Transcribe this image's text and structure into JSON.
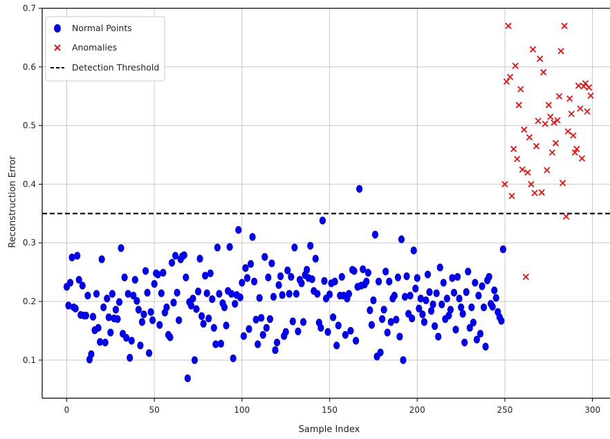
{
  "chart_data": {
    "type": "scatter",
    "xlabel": "Sample Index",
    "ylabel": "Reconstruction Error",
    "xlim": [
      -14,
      310
    ],
    "ylim": [
      0.035,
      0.7
    ],
    "xticks": [
      "0",
      "50",
      "100",
      "150",
      "200",
      "250",
      "300"
    ],
    "yticks": [
      "0.1",
      "0.2",
      "0.3",
      "0.4",
      "0.5",
      "0.6",
      "0.7"
    ],
    "grid": true,
    "legend_position": "top-left",
    "threshold": 0.35,
    "series": [
      {
        "name": "Normal Points",
        "marker": "circle",
        "color": "#0000ee",
        "points": [
          [
            0,
            0.225
          ],
          [
            1,
            0.193
          ],
          [
            2,
            0.232
          ],
          [
            3,
            0.275
          ],
          [
            4,
            0.19
          ],
          [
            5,
            0.188
          ],
          [
            6,
            0.278
          ],
          [
            7,
            0.237
          ],
          [
            8,
            0.177
          ],
          [
            9,
            0.227
          ],
          [
            10,
            0.176
          ],
          [
            11,
            0.176
          ],
          [
            12,
            0.21
          ],
          [
            13,
            0.101
          ],
          [
            14,
            0.11
          ],
          [
            15,
            0.174
          ],
          [
            16,
            0.151
          ],
          [
            17,
            0.213
          ],
          [
            18,
            0.155
          ],
          [
            19,
            0.131
          ],
          [
            20,
            0.272
          ],
          [
            21,
            0.19
          ],
          [
            22,
            0.13
          ],
          [
            23,
            0.205
          ],
          [
            24,
            0.173
          ],
          [
            25,
            0.147
          ],
          [
            26,
            0.213
          ],
          [
            27,
            0.171
          ],
          [
            28,
            0.186
          ],
          [
            29,
            0.17
          ],
          [
            30,
            0.199
          ],
          [
            31,
            0.291
          ],
          [
            32,
            0.145
          ],
          [
            33,
            0.241
          ],
          [
            34,
            0.138
          ],
          [
            35,
            0.213
          ],
          [
            36,
            0.104
          ],
          [
            37,
            0.133
          ],
          [
            38,
            0.21
          ],
          [
            39,
            0.237
          ],
          [
            40,
            0.201
          ],
          [
            41,
            0.186
          ],
          [
            42,
            0.125
          ],
          [
            43,
            0.165
          ],
          [
            44,
            0.178
          ],
          [
            45,
            0.252
          ],
          [
            46,
            0.215
          ],
          [
            47,
            0.112
          ],
          [
            48,
            0.182
          ],
          [
            49,
            0.168
          ],
          [
            50,
            0.23
          ],
          [
            51,
            0.248
          ],
          [
            52,
            0.246
          ],
          [
            53,
            0.16
          ],
          [
            54,
            0.214
          ],
          [
            55,
            0.249
          ],
          [
            56,
            0.181
          ],
          [
            57,
            0.19
          ],
          [
            58,
            0.143
          ],
          [
            59,
            0.139
          ],
          [
            60,
            0.266
          ],
          [
            61,
            0.198
          ],
          [
            62,
            0.278
          ],
          [
            63,
            0.215
          ],
          [
            64,
            0.168
          ],
          [
            65,
            0.272
          ],
          [
            66,
            0.277
          ],
          [
            67,
            0.279
          ],
          [
            68,
            0.241
          ],
          [
            69,
            0.069
          ],
          [
            70,
            0.199
          ],
          [
            71,
            0.193
          ],
          [
            72,
            0.205
          ],
          [
            73,
            0.1
          ],
          [
            74,
            0.187
          ],
          [
            75,
            0.217
          ],
          [
            76,
            0.273
          ],
          [
            77,
            0.175
          ],
          [
            78,
            0.162
          ],
          [
            79,
            0.244
          ],
          [
            80,
            0.214
          ],
          [
            81,
            0.171
          ],
          [
            82,
            0.248
          ],
          [
            83,
            0.204
          ],
          [
            84,
            0.155
          ],
          [
            85,
            0.127
          ],
          [
            86,
            0.292
          ],
          [
            87,
            0.213
          ],
          [
            88,
            0.128
          ],
          [
            89,
            0.197
          ],
          [
            90,
            0.19
          ],
          [
            91,
            0.159
          ],
          [
            92,
            0.218
          ],
          [
            93,
            0.293
          ],
          [
            94,
            0.213
          ],
          [
            95,
            0.103
          ],
          [
            96,
            0.196
          ],
          [
            97,
            0.211
          ],
          [
            98,
            0.322
          ],
          [
            99,
            0.207
          ],
          [
            100,
            0.232
          ],
          [
            101,
            0.141
          ],
          [
            102,
            0.257
          ],
          [
            103,
            0.24
          ],
          [
            104,
            0.153
          ],
          [
            105,
            0.264
          ],
          [
            106,
            0.31
          ],
          [
            107,
            0.234
          ],
          [
            108,
            0.169
          ],
          [
            109,
            0.127
          ],
          [
            110,
            0.206
          ],
          [
            111,
            0.172
          ],
          [
            112,
            0.143
          ],
          [
            113,
            0.276
          ],
          [
            114,
            0.155
          ],
          [
            115,
            0.241
          ],
          [
            116,
            0.17
          ],
          [
            117,
            0.265
          ],
          [
            118,
            0.208
          ],
          [
            119,
            0.117
          ],
          [
            120,
            0.13
          ],
          [
            121,
            0.228
          ],
          [
            122,
            0.243
          ],
          [
            123,
            0.211
          ],
          [
            124,
            0.141
          ],
          [
            125,
            0.148
          ],
          [
            126,
            0.253
          ],
          [
            127,
            0.213
          ],
          [
            128,
            0.242
          ],
          [
            129,
            0.166
          ],
          [
            130,
            0.292
          ],
          [
            131,
            0.213
          ],
          [
            132,
            0.149
          ],
          [
            133,
            0.237
          ],
          [
            134,
            0.231
          ],
          [
            135,
            0.165
          ],
          [
            136,
            0.245
          ],
          [
            137,
            0.254
          ],
          [
            138,
            0.24
          ],
          [
            139,
            0.295
          ],
          [
            140,
            0.238
          ],
          [
            141,
            0.218
          ],
          [
            142,
            0.273
          ],
          [
            143,
            0.213
          ],
          [
            144,
            0.164
          ],
          [
            145,
            0.155
          ],
          [
            146,
            0.338
          ],
          [
            147,
            0.235
          ],
          [
            148,
            0.205
          ],
          [
            149,
            0.148
          ],
          [
            150,
            0.212
          ],
          [
            151,
            0.231
          ],
          [
            152,
            0.173
          ],
          [
            153,
            0.234
          ],
          [
            154,
            0.125
          ],
          [
            155,
            0.159
          ],
          [
            156,
            0.21
          ],
          [
            157,
            0.242
          ],
          [
            158,
            0.21
          ],
          [
            159,
            0.143
          ],
          [
            160,
            0.205
          ],
          [
            161,
            0.213
          ],
          [
            162,
            0.15
          ],
          [
            163,
            0.254
          ],
          [
            164,
            0.252
          ],
          [
            165,
            0.133
          ],
          [
            166,
            0.225
          ],
          [
            167,
            0.392
          ],
          [
            168,
            0.227
          ],
          [
            169,
            0.255
          ],
          [
            170,
            0.229
          ],
          [
            171,
            0.234
          ],
          [
            172,
            0.249
          ],
          [
            173,
            0.185
          ],
          [
            174,
            0.16
          ],
          [
            175,
            0.202
          ],
          [
            176,
            0.314
          ],
          [
            177,
            0.106
          ],
          [
            178,
            0.234
          ],
          [
            179,
            0.113
          ],
          [
            180,
            0.17
          ],
          [
            181,
            0.186
          ],
          [
            182,
            0.251
          ],
          [
            183,
            0.147
          ],
          [
            184,
            0.234
          ],
          [
            185,
            0.165
          ],
          [
            186,
            0.205
          ],
          [
            187,
            0.21
          ],
          [
            188,
            0.169
          ],
          [
            189,
            0.241
          ],
          [
            190,
            0.14
          ],
          [
            191,
            0.306
          ],
          [
            192,
            0.1
          ],
          [
            193,
            0.208
          ],
          [
            194,
            0.243
          ],
          [
            195,
            0.179
          ],
          [
            196,
            0.21
          ],
          [
            197,
            0.171
          ],
          [
            198,
            0.287
          ],
          [
            199,
            0.222
          ],
          [
            200,
            0.24
          ],
          [
            201,
            0.188
          ],
          [
            202,
            0.205
          ],
          [
            203,
            0.178
          ],
          [
            204,
            0.165
          ],
          [
            205,
            0.202
          ],
          [
            206,
            0.246
          ],
          [
            207,
            0.216
          ],
          [
            208,
            0.184
          ],
          [
            209,
            0.195
          ],
          [
            210,
            0.158
          ],
          [
            211,
            0.214
          ],
          [
            212,
            0.14
          ],
          [
            213,
            0.258
          ],
          [
            214,
            0.195
          ],
          [
            215,
            0.232
          ],
          [
            216,
            0.17
          ],
          [
            217,
            0.205
          ],
          [
            218,
            0.176
          ],
          [
            219,
            0.186
          ],
          [
            220,
            0.24
          ],
          [
            221,
            0.215
          ],
          [
            222,
            0.152
          ],
          [
            223,
            0.242
          ],
          [
            224,
            0.205
          ],
          [
            225,
            0.19
          ],
          [
            226,
            0.179
          ],
          [
            227,
            0.13
          ],
          [
            228,
            0.216
          ],
          [
            229,
            0.251
          ],
          [
            230,
            0.155
          ],
          [
            231,
            0.19
          ],
          [
            232,
            0.164
          ],
          [
            233,
            0.232
          ],
          [
            234,
            0.135
          ],
          [
            235,
            0.21
          ],
          [
            236,
            0.145
          ],
          [
            237,
            0.226
          ],
          [
            238,
            0.19
          ],
          [
            239,
            0.123
          ],
          [
            240,
            0.236
          ],
          [
            241,
            0.242
          ],
          [
            242,
            0.196
          ],
          [
            243,
            0.191
          ],
          [
            244,
            0.219
          ],
          [
            245,
            0.206
          ],
          [
            246,
            0.182
          ],
          [
            247,
            0.173
          ],
          [
            248,
            0.167
          ],
          [
            249,
            0.289
          ]
        ]
      },
      {
        "name": "Anomalies",
        "marker": "x",
        "color": "#ee1111",
        "points": [
          [
            250,
            0.4
          ],
          [
            251,
            0.575
          ],
          [
            252,
            0.67
          ],
          [
            253,
            0.583
          ],
          [
            254,
            0.38
          ],
          [
            255,
            0.46
          ],
          [
            256,
            0.602
          ],
          [
            257,
            0.443
          ],
          [
            258,
            0.535
          ],
          [
            259,
            0.562
          ],
          [
            260,
            0.425
          ],
          [
            261,
            0.493
          ],
          [
            262,
            0.242
          ],
          [
            263,
            0.42
          ],
          [
            264,
            0.48
          ],
          [
            265,
            0.4
          ],
          [
            266,
            0.63
          ],
          [
            267,
            0.385
          ],
          [
            268,
            0.465
          ],
          [
            269,
            0.508
          ],
          [
            270,
            0.614
          ],
          [
            271,
            0.386
          ],
          [
            272,
            0.591
          ],
          [
            273,
            0.503
          ],
          [
            274,
            0.424
          ],
          [
            275,
            0.535
          ],
          [
            276,
            0.515
          ],
          [
            277,
            0.454
          ],
          [
            278,
            0.505
          ],
          [
            279,
            0.47
          ],
          [
            280,
            0.509
          ],
          [
            281,
            0.55
          ],
          [
            282,
            0.627
          ],
          [
            283,
            0.402
          ],
          [
            284,
            0.67
          ],
          [
            285,
            0.345
          ],
          [
            286,
            0.49
          ],
          [
            287,
            0.546
          ],
          [
            288,
            0.52
          ],
          [
            289,
            0.483
          ],
          [
            290,
            0.454
          ],
          [
            291,
            0.46
          ],
          [
            292,
            0.568
          ],
          [
            293,
            0.529
          ],
          [
            294,
            0.444
          ],
          [
            295,
            0.567
          ],
          [
            296,
            0.572
          ],
          [
            297,
            0.524
          ],
          [
            298,
            0.565
          ],
          [
            299,
            0.551
          ]
        ]
      },
      {
        "name": "Detection Threshold",
        "marker": "dashed-line",
        "color": "#000000",
        "points": [
          [
            -14,
            0.35
          ],
          [
            310,
            0.35
          ]
        ]
      }
    ]
  },
  "colors": {
    "grid": "#c8c8c8",
    "axis": "#000000",
    "normal": "#0000ee",
    "anomaly": "#ee1111",
    "threshold": "#000000"
  }
}
